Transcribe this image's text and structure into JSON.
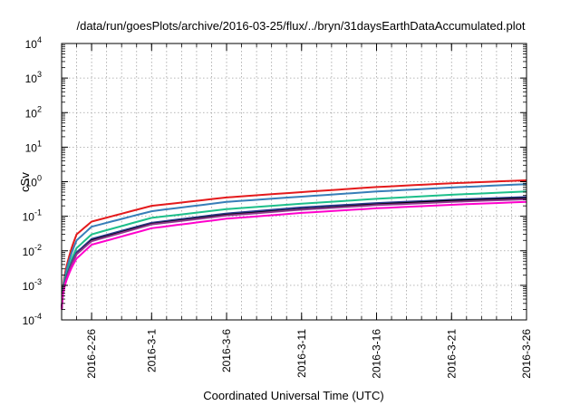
{
  "chart_data": {
    "type": "line",
    "title": "/data/run/goesPlots/archive/2016-03-25/flux/../bryn/31daysEarthDataAccumulated.plot",
    "xlabel": "Coordinated Universal Time (UTC)",
    "ylabel": "cSv",
    "yscale": "log",
    "ylim": [
      0.0001,
      10000
    ],
    "xlim": [
      "2016-02-24",
      "2016-03-26"
    ],
    "grid": true,
    "legend": "none",
    "y_ticks": [
      {
        "value": 0.0001,
        "base": "10",
        "exp": "-4"
      },
      {
        "value": 0.001,
        "base": "10",
        "exp": "-3"
      },
      {
        "value": 0.01,
        "base": "10",
        "exp": "-2"
      },
      {
        "value": 0.1,
        "base": "10",
        "exp": "-1"
      },
      {
        "value": 1,
        "base": "10",
        "exp": "0"
      },
      {
        "value": 10,
        "base": "10",
        "exp": "1"
      },
      {
        "value": 100,
        "base": "10",
        "exp": "2"
      },
      {
        "value": 1000,
        "base": "10",
        "exp": "3"
      },
      {
        "value": 10000,
        "base": "10",
        "exp": "4"
      }
    ],
    "x_ticks": [
      {
        "value": "2016-02-26",
        "label": "2016-2-26"
      },
      {
        "value": "2016-03-01",
        "label": "2016-3-1"
      },
      {
        "value": "2016-03-06",
        "label": "2016-3-6"
      },
      {
        "value": "2016-03-11",
        "label": "2016-3-11"
      },
      {
        "value": "2016-03-16",
        "label": "2016-3-16"
      },
      {
        "value": "2016-03-21",
        "label": "2016-3-21"
      },
      {
        "value": "2016-03-26",
        "label": "2016-3-26"
      }
    ],
    "x": [
      "2016-02-24",
      "2016-02-25",
      "2016-02-26",
      "2016-03-01",
      "2016-03-06",
      "2016-03-11",
      "2016-03-16",
      "2016-03-21",
      "2016-03-26"
    ],
    "series": [
      {
        "color": "#e41a1c",
        "values": [
          0.0002,
          0.03,
          0.07,
          0.2,
          0.35,
          0.5,
          0.7,
          0.9,
          1.1
        ]
      },
      {
        "color": "#377eb8",
        "values": [
          0.0002,
          0.02,
          0.05,
          0.14,
          0.26,
          0.37,
          0.52,
          0.68,
          0.85
        ]
      },
      {
        "color": "#1dbf8a",
        "values": [
          0.0002,
          0.012,
          0.03,
          0.09,
          0.16,
          0.23,
          0.32,
          0.42,
          0.52
        ]
      },
      {
        "color": "#2b3990",
        "values": [
          0.0002,
          0.009,
          0.022,
          0.065,
          0.12,
          0.18,
          0.24,
          0.3,
          0.36
        ]
      },
      {
        "color": "#000000",
        "values": [
          0.0002,
          0.008,
          0.02,
          0.06,
          0.11,
          0.16,
          0.22,
          0.28,
          0.33
        ]
      },
      {
        "color": "#8e3a8e",
        "values": [
          0.0002,
          0.008,
          0.019,
          0.058,
          0.105,
          0.155,
          0.21,
          0.26,
          0.31
        ]
      },
      {
        "color": "#ff00cc",
        "values": [
          0.0002,
          0.006,
          0.015,
          0.045,
          0.085,
          0.125,
          0.17,
          0.215,
          0.26
        ]
      }
    ]
  }
}
